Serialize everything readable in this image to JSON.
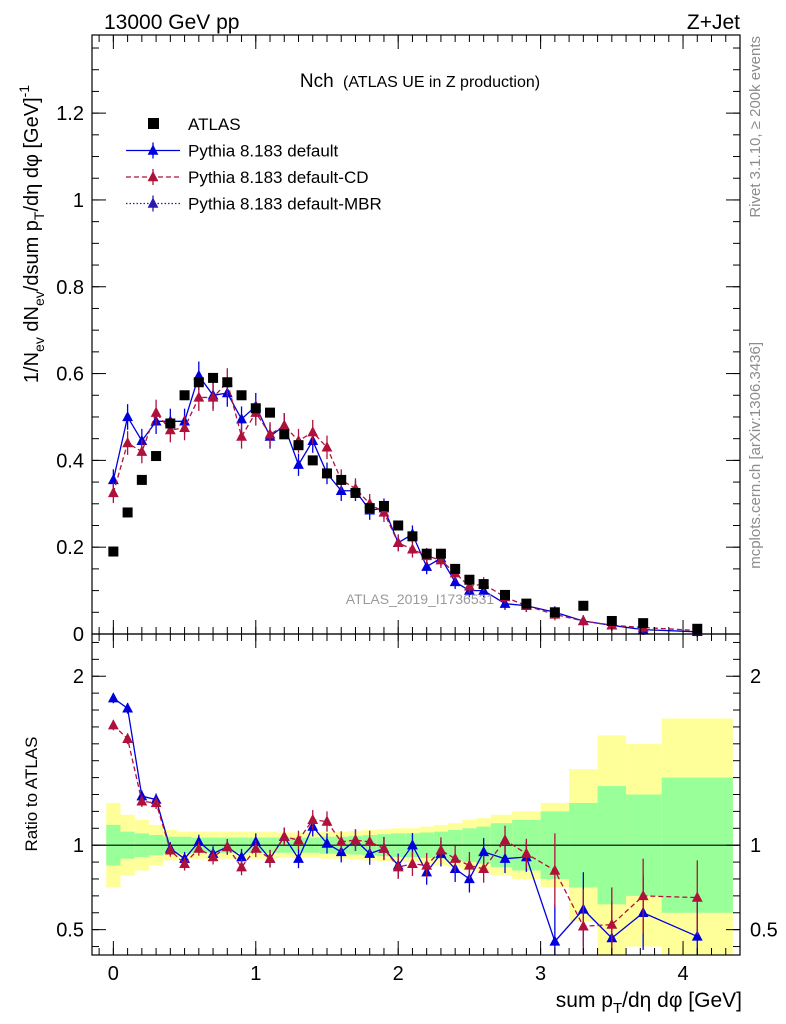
{
  "header": {
    "left": "13000 GeV pp",
    "right": "Z+Jet"
  },
  "side_texts": {
    "rivet": "Rivet 3.1.10, ≥ 200k events",
    "mcplots": "mcplots.cern.ch [arXiv:1306.3436]"
  },
  "watermark": "ATLAS_2019_I1736531",
  "chart_data": [
    {
      "type": "scatter",
      "title": "Nch",
      "subtitle": "(ATLAS UE in Z production)",
      "ylabel": "1/N_ev dN_ev/dsum p_T/dη dφ [GeV]^-1",
      "xlabel": "",
      "xlim": [
        -0.15,
        4.4
      ],
      "ylim": [
        0,
        1.38
      ],
      "yticks": [
        0,
        0.2,
        0.4,
        0.6,
        0.8,
        1,
        1.2
      ],
      "ytick_labels": [
        "0",
        "0.2",
        "0.4",
        "0.6",
        "0.8",
        "1",
        "1.2"
      ],
      "legend": {
        "position": "top-left",
        "entries": [
          "ATLAS",
          "Pythia 8.183 default",
          "Pythia 8.183 default-CD",
          "Pythia 8.183 default-MBR"
        ]
      },
      "data": {
        "name": "ATLAS",
        "x": [
          0,
          0.1,
          0.2,
          0.3,
          0.4,
          0.5,
          0.6,
          0.7,
          0.8,
          0.9,
          1.0,
          1.1,
          1.2,
          1.3,
          1.4,
          1.5,
          1.6,
          1.7,
          1.8,
          1.9,
          2.0,
          2.1,
          2.2,
          2.3,
          2.4,
          2.5,
          2.6,
          2.75,
          2.9,
          3.1,
          3.3,
          3.5,
          3.72,
          4.1
        ],
        "y": [
          0.19,
          0.28,
          0.355,
          0.41,
          0.485,
          0.55,
          0.58,
          0.59,
          0.58,
          0.55,
          0.52,
          0.51,
          0.46,
          0.435,
          0.4,
          0.37,
          0.355,
          0.325,
          0.29,
          0.295,
          0.25,
          0.225,
          0.185,
          0.185,
          0.15,
          0.125,
          0.115,
          0.09,
          0.07,
          0.05,
          0.065,
          0.03,
          0.025,
          0.012
        ]
      },
      "series": [
        {
          "name": "Pythia 8.183 default",
          "color": "#0000dd",
          "x": [
            0,
            0.1,
            0.2,
            0.3,
            0.4,
            0.5,
            0.6,
            0.7,
            0.8,
            0.9,
            1.0,
            1.1,
            1.2,
            1.3,
            1.4,
            1.5,
            1.6,
            1.7,
            1.8,
            1.9,
            2.0,
            2.1,
            2.2,
            2.3,
            2.4,
            2.5,
            2.6,
            2.75,
            2.9,
            3.1,
            3.3,
            3.5,
            3.72,
            4.1
          ],
          "y": [
            0.355,
            0.5,
            0.445,
            0.49,
            0.49,
            0.49,
            0.595,
            0.55,
            0.555,
            0.495,
            0.525,
            0.455,
            0.48,
            0.39,
            0.445,
            0.37,
            0.33,
            0.33,
            0.285,
            0.29,
            0.21,
            0.23,
            0.155,
            0.175,
            0.12,
            0.1,
            0.1,
            0.07,
            0.065,
            0.05,
            0.03,
            0.02,
            0.01,
            0.005
          ]
        },
        {
          "name": "Pythia 8.183 default-CD",
          "color": "#b0113a",
          "x": [
            0,
            0.1,
            0.2,
            0.3,
            0.4,
            0.5,
            0.6,
            0.7,
            0.8,
            0.9,
            1.0,
            1.1,
            1.2,
            1.3,
            1.4,
            1.5,
            1.6,
            1.7,
            1.8,
            1.9,
            2.0,
            2.1,
            2.2,
            2.3,
            2.4,
            2.5,
            2.6,
            2.75,
            2.9,
            3.1,
            3.3,
            3.5,
            3.72,
            4.1
          ],
          "y": [
            0.325,
            0.44,
            0.42,
            0.51,
            0.47,
            0.475,
            0.545,
            0.545,
            0.58,
            0.455,
            0.51,
            0.46,
            0.48,
            0.445,
            0.465,
            0.43,
            0.355,
            0.335,
            0.3,
            0.28,
            0.21,
            0.195,
            0.18,
            0.17,
            0.14,
            0.11,
            0.115,
            0.085,
            0.065,
            0.045,
            0.03,
            0.02,
            0.015,
            0.008
          ]
        }
      ]
    },
    {
      "type": "scatter",
      "title": "",
      "xlabel": "sum p_T/dη dφ [GeV]",
      "ylabel": "Ratio to ATLAS",
      "xlim": [
        -0.15,
        4.4
      ],
      "ylim": [
        0.35,
        2.25
      ],
      "yticks": [
        0.5,
        1,
        2
      ],
      "ytick_labels": [
        "0.5",
        "1",
        "2"
      ],
      "xticks": [
        0,
        1,
        2,
        3,
        4
      ],
      "xtick_labels": [
        "0",
        "1",
        "2",
        "3",
        "4"
      ],
      "band_edges": [
        -0.05,
        0.05,
        0.15,
        0.25,
        0.35,
        0.45,
        0.55,
        0.65,
        0.75,
        0.85,
        0.95,
        1.05,
        1.15,
        1.25,
        1.35,
        1.45,
        1.55,
        1.65,
        1.75,
        1.85,
        1.95,
        2.05,
        2.15,
        2.25,
        2.35,
        2.45,
        2.55,
        2.65,
        2.8,
        3.0,
        3.2,
        3.4,
        3.6,
        3.85,
        4.35
      ],
      "band_stat_half_width": [
        0.12,
        0.08,
        0.07,
        0.06,
        0.05,
        0.05,
        0.045,
        0.045,
        0.045,
        0.045,
        0.045,
        0.045,
        0.045,
        0.045,
        0.045,
        0.05,
        0.05,
        0.055,
        0.06,
        0.065,
        0.07,
        0.07,
        0.075,
        0.08,
        0.09,
        0.1,
        0.11,
        0.13,
        0.15,
        0.2,
        0.25,
        0.35,
        0.3,
        0.4,
        0.35
      ],
      "band_total_half_width": [
        0.25,
        0.18,
        0.15,
        0.12,
        0.09,
        0.08,
        0.08,
        0.08,
        0.08,
        0.08,
        0.08,
        0.08,
        0.075,
        0.075,
        0.075,
        0.08,
        0.08,
        0.085,
        0.09,
        0.095,
        0.1,
        0.1,
        0.11,
        0.12,
        0.13,
        0.15,
        0.16,
        0.18,
        0.2,
        0.25,
        0.45,
        0.65,
        0.6,
        0.75,
        0.75
      ],
      "series": [
        {
          "name": "Pythia 8.183 default",
          "color": "#0000dd",
          "x": [
            0,
            0.1,
            0.2,
            0.3,
            0.4,
            0.5,
            0.6,
            0.7,
            0.8,
            0.9,
            1.0,
            1.1,
            1.2,
            1.3,
            1.4,
            1.5,
            1.6,
            1.7,
            1.8,
            1.9,
            2.0,
            2.1,
            2.2,
            2.3,
            2.4,
            2.5,
            2.6,
            2.75,
            2.9,
            3.1,
            3.3,
            3.5,
            3.72,
            4.1
          ],
          "y": [
            1.87,
            1.81,
            1.29,
            1.27,
            0.98,
            0.92,
            1.02,
            0.95,
            0.99,
            0.93,
            1.02,
            0.92,
            1.05,
            0.92,
            1.11,
            1.01,
            0.96,
            1.03,
            0.95,
            0.98,
            0.88,
            1.0,
            0.84,
            0.95,
            0.86,
            0.8,
            0.96,
            0.92,
            0.93,
            0.43,
            0.62,
            0.45,
            0.6,
            0.46
          ]
        },
        {
          "name": "Pythia 8.183 default-CD",
          "color": "#b0113a",
          "x": [
            0,
            0.1,
            0.2,
            0.3,
            0.4,
            0.5,
            0.6,
            0.7,
            0.8,
            0.9,
            1.0,
            1.1,
            1.2,
            1.3,
            1.4,
            1.5,
            1.6,
            1.7,
            1.8,
            1.9,
            2.0,
            2.1,
            2.2,
            2.3,
            2.4,
            2.5,
            2.6,
            2.75,
            2.9,
            3.1,
            3.3,
            3.5,
            3.72,
            4.1
          ],
          "y": [
            1.71,
            1.63,
            1.26,
            1.25,
            0.97,
            0.89,
            0.98,
            0.93,
            0.99,
            0.87,
            0.98,
            0.92,
            1.05,
            1.03,
            1.15,
            1.14,
            1.02,
            1.03,
            1.02,
            0.98,
            0.87,
            0.89,
            0.88,
            0.97,
            0.92,
            0.88,
            0.86,
            1.03,
            0.95,
            0.85,
            0.52,
            0.53,
            0.7,
            0.69
          ]
        }
      ]
    }
  ]
}
